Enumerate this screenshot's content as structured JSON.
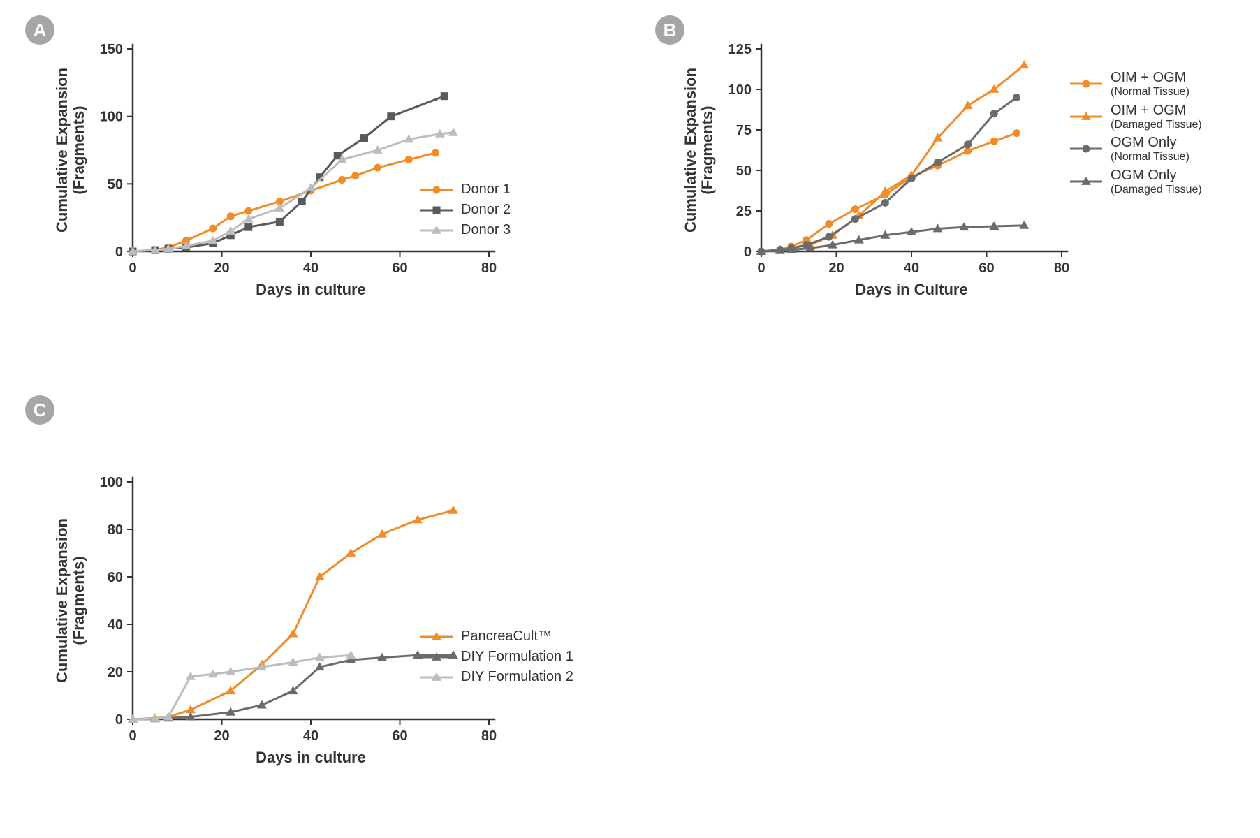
{
  "colors": {
    "axis": "#333333",
    "tick": "#333333",
    "text": "#333333",
    "badge_bg": "#a6a6a6",
    "badge_fg": "#ffffff"
  },
  "typography": {
    "axis_title_pt": 16,
    "tick_label_pt": 14,
    "legend_pt": 14
  },
  "panels": {
    "A": {
      "badge": "A",
      "type": "line",
      "x_title": "Days in culture",
      "y_title": "Cumulative Expansion\n(Fragments)",
      "xlim": [
        0,
        80
      ],
      "ylim": [
        0,
        150
      ],
      "xticks": [
        0,
        20,
        40,
        60,
        80
      ],
      "yticks": [
        0,
        50,
        100,
        150
      ],
      "series": [
        {
          "name": "Donor 1",
          "marker": "circle",
          "color": "#f28c28",
          "data": [
            [
              0,
              0
            ],
            [
              5,
              1
            ],
            [
              8,
              3
            ],
            [
              12,
              8
            ],
            [
              18,
              17
            ],
            [
              22,
              26
            ],
            [
              26,
              30
            ],
            [
              33,
              37
            ],
            [
              40,
              45
            ],
            [
              47,
              53
            ],
            [
              50,
              56
            ],
            [
              55,
              62
            ],
            [
              62,
              68
            ],
            [
              68,
              73
            ]
          ]
        },
        {
          "name": "Donor 2",
          "marker": "square",
          "color": "#5a5a5a",
          "data": [
            [
              0,
              0
            ],
            [
              5,
              1
            ],
            [
              8,
              2
            ],
            [
              12,
              3
            ],
            [
              18,
              6
            ],
            [
              22,
              12
            ],
            [
              26,
              18
            ],
            [
              33,
              22
            ],
            [
              38,
              37
            ],
            [
              42,
              55
            ],
            [
              46,
              71
            ],
            [
              52,
              84
            ],
            [
              58,
              100
            ],
            [
              70,
              115
            ]
          ]
        },
        {
          "name": "Donor 3",
          "marker": "triangle",
          "color": "#bdbdbd",
          "data": [
            [
              0,
              0
            ],
            [
              5,
              1
            ],
            [
              8,
              2
            ],
            [
              12,
              4
            ],
            [
              18,
              8
            ],
            [
              22,
              15
            ],
            [
              26,
              24
            ],
            [
              33,
              32
            ],
            [
              40,
              47
            ],
            [
              47,
              68
            ],
            [
              55,
              75
            ],
            [
              62,
              83
            ],
            [
              69,
              87
            ],
            [
              72,
              88
            ]
          ]
        }
      ]
    },
    "B": {
      "badge": "B",
      "type": "line",
      "x_title": "Days in Culture",
      "y_title": "Cumulative Expansion\n(Fragments)",
      "xlim": [
        0,
        80
      ],
      "ylim": [
        0,
        125
      ],
      "xticks": [
        0,
        20,
        40,
        60,
        80
      ],
      "yticks": [
        0,
        25,
        50,
        75,
        100,
        125
      ],
      "series": [
        {
          "name": "OIM + OGM",
          "sub": "(Normal Tissue)",
          "marker": "circle",
          "color": "#f28c28",
          "data": [
            [
              0,
              0
            ],
            [
              5,
              1
            ],
            [
              8,
              3
            ],
            [
              12,
              7
            ],
            [
              18,
              17
            ],
            [
              25,
              26
            ],
            [
              33,
              35
            ],
            [
              40,
              46
            ],
            [
              47,
              53
            ],
            [
              55,
              62
            ],
            [
              62,
              68
            ],
            [
              68,
              73
            ]
          ]
        },
        {
          "name": "OIM + OGM",
          "sub": "(Damaged Tissue)",
          "marker": "triangle",
          "color": "#f28c28",
          "data": [
            [
              0,
              0
            ],
            [
              5,
              1
            ],
            [
              8,
              2
            ],
            [
              13,
              4
            ],
            [
              19,
              10
            ],
            [
              26,
              22
            ],
            [
              33,
              37
            ],
            [
              40,
              47
            ],
            [
              47,
              70
            ],
            [
              55,
              90
            ],
            [
              62,
              100
            ],
            [
              70,
              115
            ]
          ]
        },
        {
          "name": "OGM Only",
          "sub": "(Normal Tissue)",
          "marker": "circle",
          "color": "#6b6b6b",
          "data": [
            [
              0,
              0
            ],
            [
              5,
              1
            ],
            [
              8,
              2
            ],
            [
              12,
              4
            ],
            [
              18,
              9
            ],
            [
              25,
              20
            ],
            [
              33,
              30
            ],
            [
              40,
              45
            ],
            [
              47,
              55
            ],
            [
              55,
              66
            ],
            [
              62,
              85
            ],
            [
              68,
              95
            ]
          ]
        },
        {
          "name": "OGM Only",
          "sub": "(Damaged Tissue)",
          "marker": "triangle",
          "color": "#6b6b6b",
          "data": [
            [
              0,
              0
            ],
            [
              5,
              0.5
            ],
            [
              8,
              1
            ],
            [
              13,
              2
            ],
            [
              19,
              4
            ],
            [
              26,
              7
            ],
            [
              33,
              10
            ],
            [
              40,
              12
            ],
            [
              47,
              14
            ],
            [
              54,
              15
            ],
            [
              62,
              15.5
            ],
            [
              70,
              16
            ]
          ]
        }
      ]
    },
    "C": {
      "badge": "C",
      "type": "line",
      "x_title": "Days in culture",
      "y_title": "Cumulative Expansion\n(Fragments)",
      "xlim": [
        0,
        80
      ],
      "ylim": [
        0,
        100
      ],
      "xticks": [
        0,
        20,
        40,
        60,
        80
      ],
      "yticks": [
        0,
        20,
        40,
        60,
        80,
        100
      ],
      "series": [
        {
          "name": "PancreaCult™",
          "marker": "triangle",
          "color": "#f28c28",
          "data": [
            [
              0,
              0
            ],
            [
              5,
              0.5
            ],
            [
              8,
              1
            ],
            [
              13,
              4
            ],
            [
              22,
              12
            ],
            [
              29,
              23
            ],
            [
              36,
              36
            ],
            [
              42,
              60
            ],
            [
              49,
              70
            ],
            [
              56,
              78
            ],
            [
              64,
              84
            ],
            [
              72,
              88
            ]
          ]
        },
        {
          "name": "DIY Formulation   1",
          "marker": "triangle",
          "color": "#6b6b6b",
          "data": [
            [
              0,
              0
            ],
            [
              5,
              0.2
            ],
            [
              8,
              0.5
            ],
            [
              13,
              1
            ],
            [
              22,
              3
            ],
            [
              29,
              6
            ],
            [
              36,
              12
            ],
            [
              42,
              22
            ],
            [
              49,
              25
            ],
            [
              56,
              26
            ],
            [
              64,
              27
            ],
            [
              72,
              27
            ]
          ]
        },
        {
          "name": "DIY Formulation    2",
          "marker": "triangle",
          "color": "#bdbdbd",
          "data": [
            [
              0,
              0
            ],
            [
              5,
              0.3
            ],
            [
              8,
              1
            ],
            [
              13,
              18
            ],
            [
              18,
              19
            ],
            [
              22,
              20
            ],
            [
              29,
              22
            ],
            [
              36,
              24
            ],
            [
              42,
              26
            ],
            [
              49,
              27
            ]
          ]
        }
      ]
    }
  }
}
